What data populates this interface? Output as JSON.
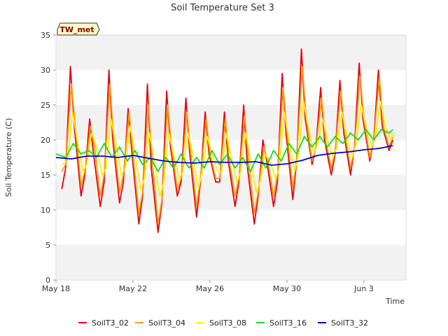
{
  "chart_data": {
    "type": "line",
    "title": "Soil Temperature Set 3",
    "xlabel": "Time",
    "ylabel": "Soil Temperature (C)",
    "badge": "TW_met",
    "ylim": [
      0,
      35
    ],
    "yticks": [
      0,
      5,
      10,
      15,
      20,
      25,
      30,
      35
    ],
    "xlim": [
      0,
      18
    ],
    "xticks": [
      {
        "day": 0,
        "label": "May 18"
      },
      {
        "day": 4,
        "label": "May 22"
      },
      {
        "day": 8,
        "label": "May 26"
      },
      {
        "day": 12,
        "label": "May 30"
      },
      {
        "day": 16,
        "label": "Jun 3"
      }
    ],
    "grid": "alternating horizontal bands",
    "legend_position": "bottom",
    "series": [
      {
        "name": "SoilT3_02",
        "color": "#e8000b",
        "x": [
          0.3,
          0.5,
          0.75,
          0.95,
          1.3,
          1.5,
          1.75,
          1.95,
          2.3,
          2.5,
          2.75,
          2.95,
          3.3,
          3.5,
          3.75,
          3.95,
          4.3,
          4.5,
          4.75,
          4.95,
          5.3,
          5.5,
          5.75,
          5.95,
          6.3,
          6.5,
          6.75,
          6.95,
          7.3,
          7.5,
          7.75,
          7.95,
          8.3,
          8.5,
          8.75,
          8.95,
          9.3,
          9.5,
          9.75,
          9.95,
          10.3,
          10.5,
          10.75,
          10.95,
          11.3,
          11.5,
          11.75,
          11.95,
          12.3,
          12.5,
          12.75,
          12.95,
          13.3,
          13.5,
          13.75,
          13.95,
          14.3,
          14.5,
          14.75,
          14.95,
          15.3,
          15.5,
          15.75,
          15.95,
          16.3,
          16.5,
          16.75,
          16.95,
          17.3,
          17.5
        ],
        "y": [
          13,
          16,
          30.5,
          22,
          12,
          15,
          23,
          18,
          10.5,
          14,
          30,
          20,
          11,
          14,
          24.5,
          18,
          8,
          12,
          28,
          16,
          6.8,
          11,
          27,
          19,
          12,
          14,
          26,
          18,
          9,
          14,
          24,
          18,
          14,
          14,
          24,
          17,
          10.5,
          14,
          25,
          16,
          8,
          12,
          20,
          17,
          10.5,
          14,
          29.5,
          21,
          11.5,
          17,
          33,
          23,
          16.5,
          19,
          27.5,
          20,
          15,
          18,
          28.5,
          21,
          15,
          19,
          31,
          23,
          17,
          20,
          30,
          22,
          18.5,
          20
        ]
      },
      {
        "name": "SoilT3_04",
        "color": "#ff9900",
        "x": [
          0.3,
          0.5,
          0.8,
          1.0,
          1.3,
          1.5,
          1.8,
          2.0,
          2.3,
          2.5,
          2.8,
          3.0,
          3.3,
          3.5,
          3.8,
          4.0,
          4.3,
          4.5,
          4.8,
          5.0,
          5.3,
          5.5,
          5.8,
          6.0,
          6.3,
          6.5,
          6.8,
          7.0,
          7.3,
          7.5,
          7.8,
          8.0,
          8.3,
          8.5,
          8.8,
          9.0,
          9.3,
          9.5,
          9.8,
          10.0,
          10.3,
          10.5,
          10.8,
          11.0,
          11.3,
          11.5,
          11.8,
          12.0,
          12.3,
          12.5,
          12.8,
          13.0,
          13.3,
          13.5,
          13.8,
          14.0,
          14.3,
          14.5,
          14.8,
          15.0,
          15.3,
          15.5,
          15.8,
          16.0,
          16.3,
          16.5,
          16.8,
          17.0,
          17.3,
          17.5
        ],
        "y": [
          15.5,
          16.5,
          28,
          22,
          13.5,
          15.5,
          22,
          19,
          12,
          15,
          28,
          20,
          12.5,
          15,
          24,
          18,
          9.5,
          12.5,
          25,
          17,
          8,
          11.5,
          25,
          19,
          13,
          14.5,
          24,
          18,
          10.5,
          14.5,
          23,
          18,
          14.5,
          14.5,
          23,
          17,
          12,
          14.5,
          23.5,
          17,
          9.5,
          12.5,
          19,
          17,
          12,
          15,
          27.5,
          21,
          13,
          17.5,
          30.5,
          23,
          17,
          19,
          26,
          20,
          16,
          18.5,
          27,
          21,
          16,
          19,
          29,
          23,
          17.5,
          20,
          29,
          22,
          19,
          20.5
        ]
      },
      {
        "name": "SoilT3_08",
        "color": "#ffee00",
        "x": [
          0.3,
          0.6,
          0.85,
          1.1,
          1.4,
          1.6,
          1.85,
          2.1,
          2.4,
          2.6,
          2.85,
          3.1,
          3.4,
          3.6,
          3.85,
          4.1,
          4.4,
          4.6,
          4.85,
          5.1,
          5.4,
          5.6,
          5.85,
          6.1,
          6.4,
          6.6,
          6.85,
          7.1,
          7.4,
          7.6,
          7.85,
          8.1,
          8.4,
          8.6,
          8.85,
          9.1,
          9.4,
          9.6,
          9.85,
          10.1,
          10.4,
          10.6,
          10.85,
          11.1,
          11.4,
          11.6,
          11.85,
          12.1,
          12.4,
          12.6,
          12.85,
          13.1,
          13.4,
          13.6,
          13.85,
          14.1,
          14.4,
          14.6,
          14.85,
          15.1,
          15.4,
          15.6,
          15.85,
          16.1,
          16.4,
          16.6,
          16.85,
          17.1,
          17.4,
          17.5
        ],
        "y": [
          16.5,
          17,
          24,
          20,
          15.5,
          16.5,
          21,
          19,
          15,
          16,
          23,
          19.5,
          15,
          16,
          22,
          18,
          13,
          14.5,
          21,
          17,
          12,
          14,
          21,
          18,
          14.5,
          15.5,
          21,
          18,
          13,
          15.5,
          20.5,
          18,
          15.5,
          15.5,
          21,
          17.5,
          14,
          15.5,
          21,
          17,
          12.5,
          14,
          18,
          17,
          14.5,
          16,
          24,
          20,
          15.5,
          18,
          25.5,
          22,
          18,
          19.5,
          23,
          20,
          17.5,
          19,
          24,
          20.5,
          17.5,
          19.5,
          25,
          22,
          19,
          20.5,
          25.5,
          22,
          20,
          21
        ]
      },
      {
        "name": "SoilT3_16",
        "color": "#11dd11",
        "x": [
          0,
          0.5,
          0.9,
          1.3,
          1.7,
          2.1,
          2.5,
          2.9,
          3.3,
          3.7,
          4.1,
          4.5,
          4.9,
          5.3,
          5.7,
          6.1,
          6.5,
          6.9,
          7.3,
          7.7,
          8.1,
          8.5,
          8.9,
          9.3,
          9.7,
          10.1,
          10.5,
          10.9,
          11.3,
          11.7,
          12.1,
          12.5,
          12.9,
          13.3,
          13.7,
          14.1,
          14.5,
          14.9,
          15.3,
          15.7,
          16.1,
          16.5,
          16.9,
          17.3,
          17.5
        ],
        "y": [
          18,
          17.5,
          19.5,
          18,
          18.5,
          17.5,
          19.5,
          17.5,
          19,
          17,
          18.5,
          16.5,
          17.5,
          15.5,
          17.5,
          16,
          18,
          16,
          17.5,
          16,
          18.5,
          16.5,
          18,
          16,
          17.5,
          15.5,
          18,
          16,
          18.5,
          17,
          19.5,
          18,
          20.5,
          19,
          20.5,
          19,
          20.5,
          19.5,
          21,
          20,
          21.5,
          20,
          21.5,
          21,
          21.5
        ]
      },
      {
        "name": "SoilT3_32",
        "color": "#0000cc",
        "x": [
          0,
          0.8,
          1.6,
          2.4,
          3.2,
          4.0,
          4.8,
          5.6,
          6.4,
          7.2,
          8.0,
          8.8,
          9.6,
          10.4,
          11.2,
          12.0,
          12.8,
          13.6,
          14.4,
          15.2,
          16.0,
          16.8,
          17.5
        ],
        "y": [
          17.5,
          17.3,
          17.7,
          17.7,
          17.5,
          17.8,
          17.4,
          17.0,
          16.8,
          16.7,
          16.9,
          16.8,
          16.8,
          16.9,
          16.4,
          16.6,
          17.1,
          17.8,
          18.1,
          18.3,
          18.6,
          18.8,
          19.2
        ]
      }
    ]
  }
}
